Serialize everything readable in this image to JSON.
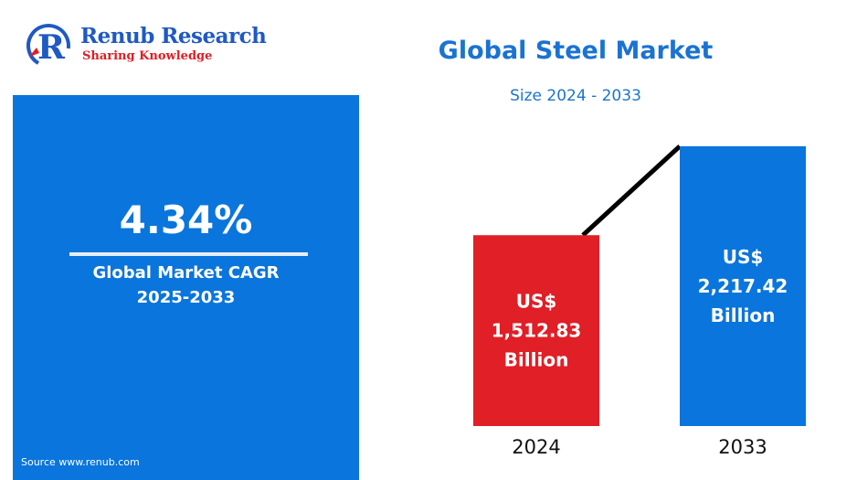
{
  "brand": {
    "name": "Renub Research",
    "tagline": "Sharing Knowledge",
    "name_color": "#1f59c4",
    "tagline_color": "#e01c24"
  },
  "left_panel": {
    "background": "#0a75dc",
    "cagr_value": "4.34%",
    "cagr_label": "Global Market CAGR",
    "cagr_period": "2025-2033",
    "source": "Source  www.renub.com"
  },
  "header": {
    "title": "Global Steel Market",
    "subtitle": "Size 2024 - 2033"
  },
  "chart_data": {
    "type": "bar",
    "title": "Global Steel Market",
    "subtitle": "Size 2024 - 2033",
    "unit": "US$ Billion",
    "categories": [
      "2024",
      "2033"
    ],
    "values": [
      1512.83,
      2217.42
    ],
    "bar_labels": [
      [
        "US$",
        "1,512.83",
        "Billion"
      ],
      [
        "US$",
        "2,217.42",
        "Billion"
      ]
    ],
    "colors": [
      "#e01f26",
      "#0a75dc"
    ],
    "trend_line_color": "#000000",
    "grid": false,
    "legend": "none",
    "ylim": [
      0,
      2217.42
    ]
  }
}
